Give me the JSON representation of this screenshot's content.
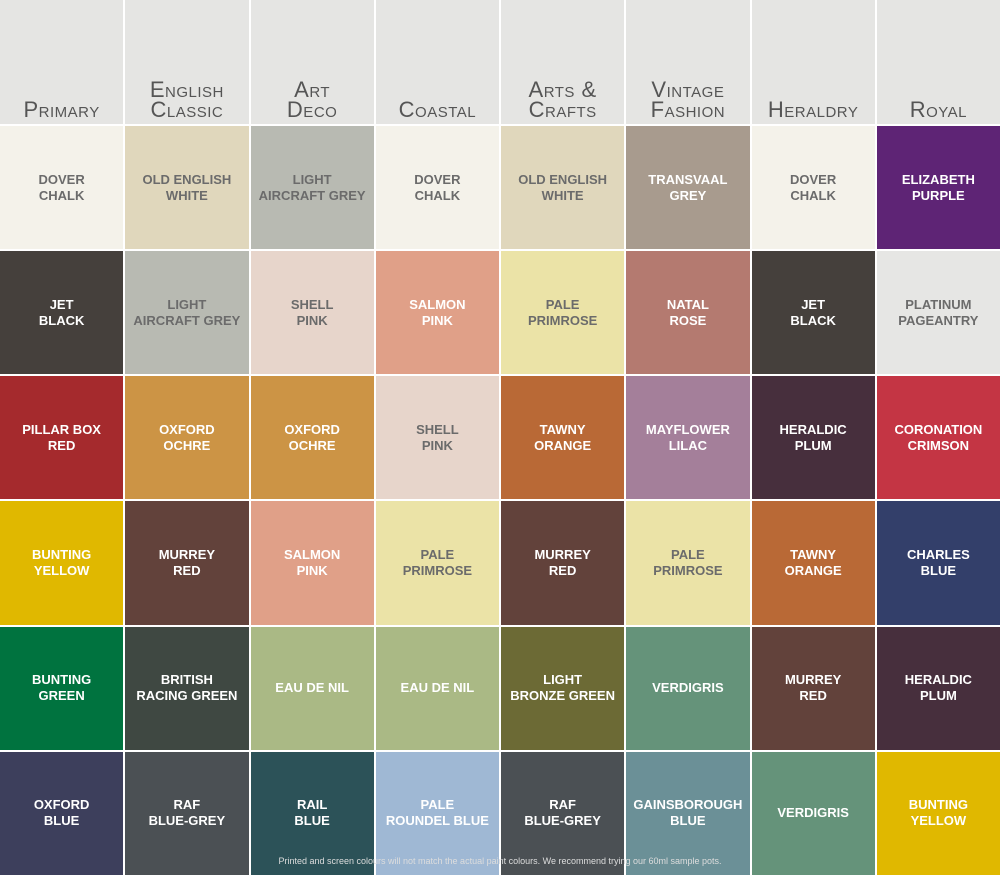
{
  "columns": [
    {
      "title": [
        "Primary"
      ],
      "swatches": [
        {
          "name": [
            "DOVER",
            "CHALK"
          ],
          "color": "#f4f2ea"
        },
        {
          "name": [
            "JET",
            "BLACK"
          ],
          "color": "#45403c"
        },
        {
          "name": [
            "PILLAR BOX",
            "RED"
          ],
          "color": "#a52a2d"
        },
        {
          "name": [
            "BUNTING",
            "YELLOW"
          ],
          "color": "#e0b800"
        },
        {
          "name": [
            "BUNTING",
            "GREEN"
          ],
          "color": "#00733f"
        },
        {
          "name": [
            "OXFORD",
            "BLUE"
          ],
          "color": "#3d3f5c"
        }
      ]
    },
    {
      "title": [
        "English",
        "Classic"
      ],
      "swatches": [
        {
          "name": [
            "OLD ENGLISH",
            "WHITE"
          ],
          "color": "#e0d7bc"
        },
        {
          "name": [
            "LIGHT",
            "AIRCRAFT GREY"
          ],
          "color": "#b8bab2"
        },
        {
          "name": [
            "OXFORD",
            "OCHRE"
          ],
          "color": "#cc9445"
        },
        {
          "name": [
            "MURREY",
            "RED"
          ],
          "color": "#62423b"
        },
        {
          "name": [
            "BRITISH",
            "RACING GREEN"
          ],
          "color": "#3f4842"
        },
        {
          "name": [
            "RAF",
            "BLUE-GREY"
          ],
          "color": "#4b5054"
        }
      ]
    },
    {
      "title": [
        "Art",
        "Deco"
      ],
      "swatches": [
        {
          "name": [
            "LIGHT",
            "AIRCRAFT GREY"
          ],
          "color": "#b8bab2"
        },
        {
          "name": [
            "SHELL",
            "PINK"
          ],
          "color": "#e7d5cb"
        },
        {
          "name": [
            "OXFORD",
            "OCHRE"
          ],
          "color": "#cc9445"
        },
        {
          "name": [
            "SALMON",
            "PINK"
          ],
          "color": "#e0a088"
        },
        {
          "name": [
            "EAU DE NIL"
          ],
          "color": "#aab985"
        },
        {
          "name": [
            "RAIL",
            "BLUE"
          ],
          "color": "#2c5258"
        }
      ]
    },
    {
      "title": [
        "Coastal"
      ],
      "swatches": [
        {
          "name": [
            "DOVER",
            "CHALK"
          ],
          "color": "#f4f2ea"
        },
        {
          "name": [
            "SALMON",
            "PINK"
          ],
          "color": "#e0a088"
        },
        {
          "name": [
            "SHELL",
            "PINK"
          ],
          "color": "#e7d5cb"
        },
        {
          "name": [
            "PALE",
            "PRIMROSE"
          ],
          "color": "#ebe3a7"
        },
        {
          "name": [
            "EAU DE NIL"
          ],
          "color": "#aab985"
        },
        {
          "name": [
            "PALE",
            "ROUNDEL BLUE"
          ],
          "color": "#9fb8d4"
        }
      ]
    },
    {
      "title": [
        "Arts &",
        "Crafts"
      ],
      "swatches": [
        {
          "name": [
            "OLD ENGLISH",
            "WHITE"
          ],
          "color": "#e0d7bc"
        },
        {
          "name": [
            "PALE",
            "PRIMROSE"
          ],
          "color": "#ebe3a7"
        },
        {
          "name": [
            "TAWNY",
            "ORANGE"
          ],
          "color": "#b96936"
        },
        {
          "name": [
            "MURREY",
            "RED"
          ],
          "color": "#62423b"
        },
        {
          "name": [
            "LIGHT",
            "BRONZE GREEN"
          ],
          "color": "#6c6a35"
        },
        {
          "name": [
            "RAF",
            "BLUE-GREY"
          ],
          "color": "#4b5054"
        }
      ]
    },
    {
      "title": [
        "Vintage",
        "Fashion"
      ],
      "swatches": [
        {
          "name": [
            "TRANSVAAL",
            "GREY"
          ],
          "color": "#a89b8e"
        },
        {
          "name": [
            "NATAL",
            "ROSE"
          ],
          "color": "#b47a70"
        },
        {
          "name": [
            "MAYFLOWER",
            "LILAC"
          ],
          "color": "#a47f9a"
        },
        {
          "name": [
            "PALE",
            "PRIMROSE"
          ],
          "color": "#ebe3a7"
        },
        {
          "name": [
            "VERDIGRIS"
          ],
          "color": "#65937a"
        },
        {
          "name": [
            "GAINSBOROUGH",
            "BLUE"
          ],
          "color": "#6b9097"
        }
      ]
    },
    {
      "title": [
        "Heraldry"
      ],
      "swatches": [
        {
          "name": [
            "DOVER",
            "CHALK"
          ],
          "color": "#f4f2ea"
        },
        {
          "name": [
            "JET",
            "BLACK"
          ],
          "color": "#45403c"
        },
        {
          "name": [
            "HERALDIC",
            "PLUM"
          ],
          "color": "#472f3d"
        },
        {
          "name": [
            "TAWNY",
            "ORANGE"
          ],
          "color": "#b96936"
        },
        {
          "name": [
            "MURREY",
            "RED"
          ],
          "color": "#62423b"
        },
        {
          "name": [
            "VERDIGRIS"
          ],
          "color": "#65937a"
        }
      ]
    },
    {
      "title": [
        "Royal"
      ],
      "swatches": [
        {
          "name": [
            "ELIZABETH",
            "PURPLE"
          ],
          "color": "#5e2475"
        },
        {
          "name": [
            "PLATINUM",
            "PAGEANTRY"
          ],
          "color": "#e6e6e4"
        },
        {
          "name": [
            "CORONATION",
            "CRIMSON"
          ],
          "color": "#c43544"
        },
        {
          "name": [
            "CHARLES",
            "BLUE"
          ],
          "color": "#333f6a"
        },
        {
          "name": [
            "HERALDIC",
            "PLUM"
          ],
          "color": "#472f3d"
        },
        {
          "name": [
            "BUNTING",
            "YELLOW"
          ],
          "color": "#e0b800"
        }
      ]
    }
  ],
  "footer": "Printed and screen colours will not match the actual paint colours. We recommend trying our 60ml sample pots."
}
